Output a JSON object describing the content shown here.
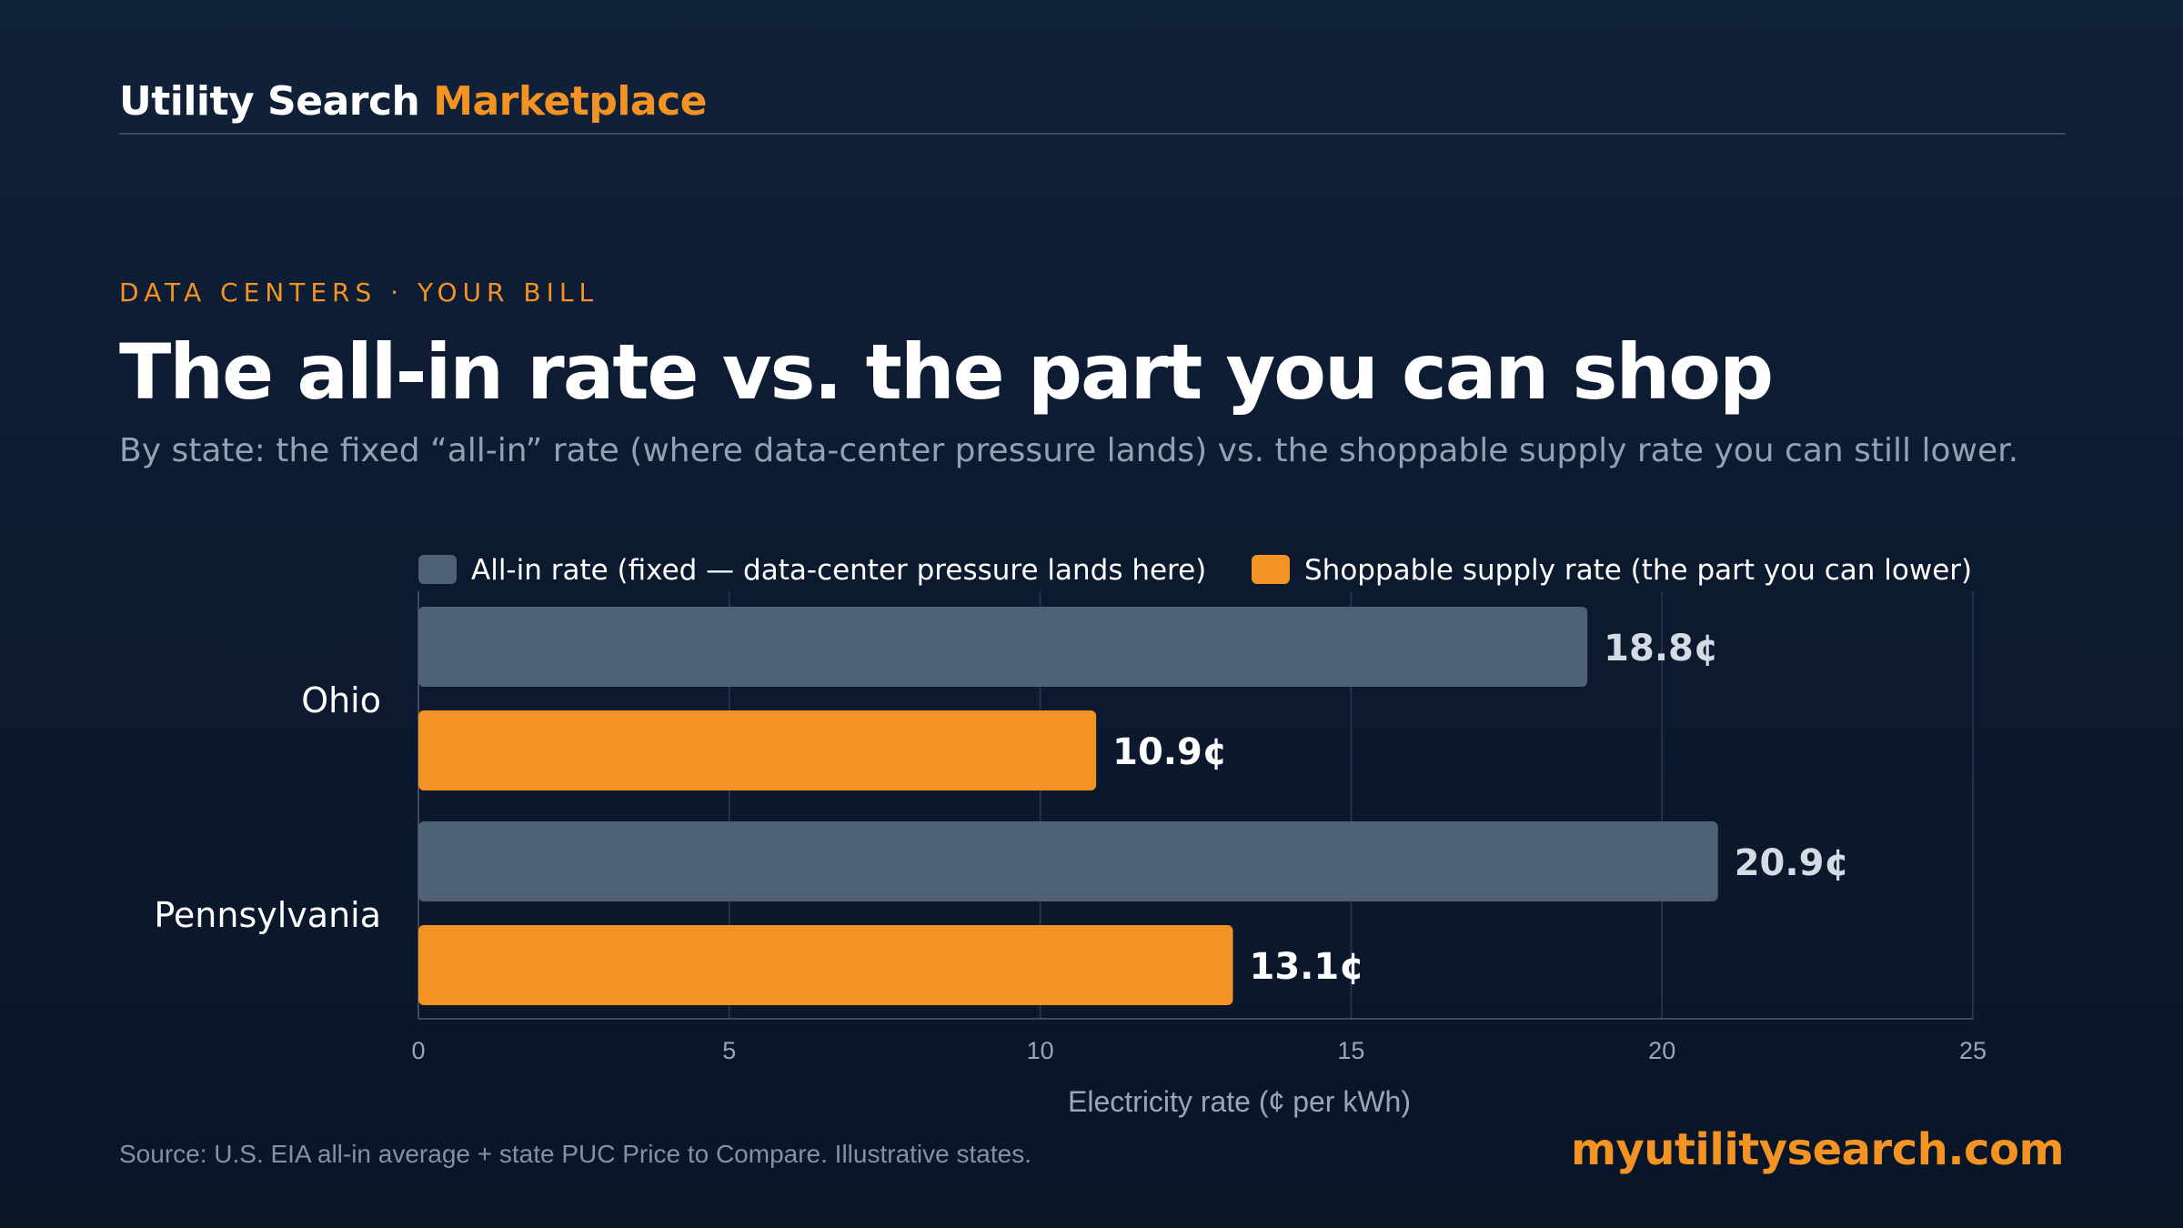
{
  "header": {
    "brand_main": "Utility Search",
    "brand_accent": "Marketplace"
  },
  "eyebrow": "DATA CENTERS · YOUR BILL",
  "title": "The all-in rate vs. the part you can shop",
  "subtitle": "By state: the fixed “all-in” rate (where data-center pressure lands) vs. the shoppable supply rate you can still lower.",
  "colors": {
    "accent": "#f39323",
    "all_in": "#4f6079",
    "shoppable": "#f39323"
  },
  "chart_data": {
    "type": "bar",
    "orientation": "horizontal",
    "categories": [
      "Ohio",
      "Pennsylvania"
    ],
    "series": [
      {
        "name": "All-in rate (fixed — data-center pressure lands here)",
        "values": [
          18.8,
          20.9
        ],
        "labels": [
          "18.8¢",
          "20.9¢"
        ],
        "color": "#4f6079"
      },
      {
        "name": "Shoppable supply rate (the part you can lower)",
        "values": [
          10.9,
          13.1
        ],
        "labels": [
          "10.9¢",
          "13.1¢"
        ],
        "color": "#f39323"
      }
    ],
    "xlabel": "Electricity rate (¢ per kWh)",
    "xlim": [
      0,
      25
    ],
    "xticks": [
      0,
      5,
      10,
      15,
      20,
      25
    ],
    "grid": true,
    "legend": "top"
  },
  "footer": {
    "source": "Source: U.S. EIA all-in average + state PUC Price to Compare. Illustrative states.",
    "site": "myutilitysearch.com"
  }
}
